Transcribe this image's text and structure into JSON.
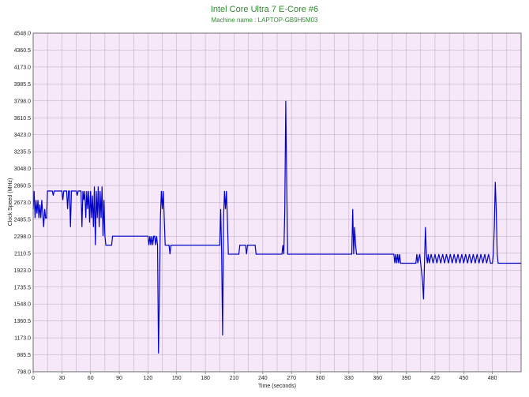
{
  "chart_data": {
    "type": "line",
    "title": "Intel Core Ultra 7 E-Core #6",
    "subtitle": "Machine name : LAPTOP-GB9H5M03",
    "xlabel": "Time (seconds)",
    "ylabel": "Clock Speed (MHz)",
    "xlim": [
      0,
      510
    ],
    "ylim": [
      798.0,
      4548.0
    ],
    "xticks": [
      0,
      30,
      60,
      90,
      120,
      150,
      180,
      210,
      240,
      270,
      300,
      330,
      360,
      390,
      420,
      450,
      480
    ],
    "yticks": [
      "798.0",
      "985.5",
      "1173.0",
      "1360.5",
      "1548.0",
      "1735.5",
      "1923.0",
      "2110.5",
      "2298.0",
      "2485.5",
      "2673.0",
      "2860.5",
      "3048.0",
      "3235.5",
      "3423.0",
      "3610.5",
      "3798.0",
      "3985.5",
      "4173.0",
      "4360.5",
      "4548.0"
    ],
    "grid": true,
    "colors": {
      "line": "#0000cc",
      "plot_bg": "#f6e7f9",
      "grid": "#b9a7bd",
      "title": "#2e8b2e"
    },
    "series": [
      {
        "points": [
          [
            0,
            2600
          ],
          [
            1,
            2800
          ],
          [
            2,
            2500
          ],
          [
            3,
            2700
          ],
          [
            4,
            2550
          ],
          [
            5,
            2700
          ],
          [
            6,
            2500
          ],
          [
            7,
            2650
          ],
          [
            8,
            2500
          ],
          [
            9,
            2700
          ],
          [
            10,
            2550
          ],
          [
            11,
            2400
          ],
          [
            12,
            2600
          ],
          [
            13,
            2500
          ],
          [
            14,
            2500
          ],
          [
            15,
            2800
          ],
          [
            18,
            2800
          ],
          [
            20,
            2800
          ],
          [
            21,
            2750
          ],
          [
            22,
            2800
          ],
          [
            28,
            2800
          ],
          [
            30,
            2800
          ],
          [
            31,
            2700
          ],
          [
            32,
            2800
          ],
          [
            35,
            2800
          ],
          [
            36,
            2600
          ],
          [
            37,
            2800
          ],
          [
            38,
            2800
          ],
          [
            39,
            2400
          ],
          [
            40,
            2800
          ],
          [
            45,
            2800
          ],
          [
            46,
            2750
          ],
          [
            47,
            2800
          ],
          [
            50,
            2800
          ],
          [
            51,
            2400
          ],
          [
            52,
            2800
          ],
          [
            53,
            2700
          ],
          [
            54,
            2800
          ],
          [
            55,
            2500
          ],
          [
            56,
            2800
          ],
          [
            57,
            2600
          ],
          [
            58,
            2800
          ],
          [
            59,
            2450
          ],
          [
            60,
            2800
          ],
          [
            61,
            2500
          ],
          [
            62,
            2750
          ],
          [
            63,
            2400
          ],
          [
            64,
            2850
          ],
          [
            65,
            2200
          ],
          [
            66,
            2800
          ],
          [
            67,
            2500
          ],
          [
            68,
            2850
          ],
          [
            69,
            2400
          ],
          [
            70,
            2800
          ],
          [
            71,
            2500
          ],
          [
            72,
            2850
          ],
          [
            73,
            2300
          ],
          [
            74,
            2700
          ],
          [
            75,
            2300
          ],
          [
            76,
            2200
          ],
          [
            80,
            2200
          ],
          [
            82,
            2200
          ],
          [
            83,
            2300
          ],
          [
            100,
            2300
          ],
          [
            120,
            2300
          ],
          [
            121,
            2200
          ],
          [
            122,
            2300
          ],
          [
            123,
            2200
          ],
          [
            124,
            2300
          ],
          [
            125,
            2200
          ],
          [
            126,
            2300
          ],
          [
            127,
            2300
          ],
          [
            128,
            2200
          ],
          [
            129,
            2300
          ],
          [
            130,
            2200
          ],
          [
            131,
            1000
          ],
          [
            132,
            1700
          ],
          [
            133,
            2500
          ],
          [
            134,
            2800
          ],
          [
            135,
            2600
          ],
          [
            136,
            2800
          ],
          [
            137,
            2500
          ],
          [
            138,
            2200
          ],
          [
            140,
            2200
          ],
          [
            142,
            2200
          ],
          [
            143,
            2100
          ],
          [
            144,
            2200
          ],
          [
            170,
            2200
          ],
          [
            195,
            2200
          ],
          [
            196,
            2600
          ],
          [
            197,
            2100
          ],
          [
            198,
            1200
          ],
          [
            199,
            2500
          ],
          [
            200,
            2800
          ],
          [
            201,
            2600
          ],
          [
            202,
            2800
          ],
          [
            203,
            2500
          ],
          [
            204,
            2100
          ],
          [
            215,
            2100
          ],
          [
            216,
            2200
          ],
          [
            222,
            2200
          ],
          [
            223,
            2100
          ],
          [
            224,
            2200
          ],
          [
            232,
            2200
          ],
          [
            233,
            2100
          ],
          [
            260,
            2100
          ],
          [
            261,
            2200
          ],
          [
            262,
            2100
          ],
          [
            263,
            2600
          ],
          [
            264,
            3800
          ],
          [
            265,
            2900
          ],
          [
            266,
            2100
          ],
          [
            300,
            2100
          ],
          [
            333,
            2100
          ],
          [
            334,
            2600
          ],
          [
            335,
            2100
          ],
          [
            336,
            2400
          ],
          [
            337,
            2200
          ],
          [
            338,
            2100
          ],
          [
            377,
            2100
          ],
          [
            378,
            2000
          ],
          [
            379,
            2100
          ],
          [
            380,
            2000
          ],
          [
            381,
            2100
          ],
          [
            382,
            2000
          ],
          [
            383,
            2100
          ],
          [
            384,
            2000
          ],
          [
            385,
            2000
          ],
          [
            395,
            2000
          ],
          [
            400,
            2000
          ],
          [
            401,
            2100
          ],
          [
            402,
            2000
          ],
          [
            404,
            2100
          ],
          [
            405,
            2000
          ],
          [
            407,
            1800
          ],
          [
            408,
            1600
          ],
          [
            409,
            2000
          ],
          [
            410,
            2400
          ],
          [
            411,
            2100
          ],
          [
            412,
            2000
          ],
          [
            413,
            2100
          ],
          [
            414,
            2000
          ],
          [
            416,
            2100
          ],
          [
            418,
            2000
          ],
          [
            420,
            2100
          ],
          [
            422,
            2000
          ],
          [
            424,
            2100
          ],
          [
            426,
            2000
          ],
          [
            428,
            2100
          ],
          [
            430,
            2000
          ],
          [
            432,
            2100
          ],
          [
            434,
            2000
          ],
          [
            436,
            2100
          ],
          [
            438,
            2000
          ],
          [
            440,
            2100
          ],
          [
            442,
            2000
          ],
          [
            444,
            2100
          ],
          [
            446,
            2000
          ],
          [
            448,
            2100
          ],
          [
            450,
            2000
          ],
          [
            452,
            2100
          ],
          [
            454,
            2000
          ],
          [
            456,
            2100
          ],
          [
            458,
            2000
          ],
          [
            460,
            2100
          ],
          [
            462,
            2000
          ],
          [
            464,
            2100
          ],
          [
            466,
            2000
          ],
          [
            468,
            2100
          ],
          [
            470,
            2000
          ],
          [
            472,
            2100
          ],
          [
            474,
            2000
          ],
          [
            476,
            2100
          ],
          [
            478,
            2000
          ],
          [
            480,
            2000
          ],
          [
            481,
            2100
          ],
          [
            482,
            2400
          ],
          [
            483,
            2900
          ],
          [
            484,
            2600
          ],
          [
            485,
            2100
          ],
          [
            486,
            2000
          ],
          [
            510,
            2000
          ]
        ]
      }
    ]
  }
}
